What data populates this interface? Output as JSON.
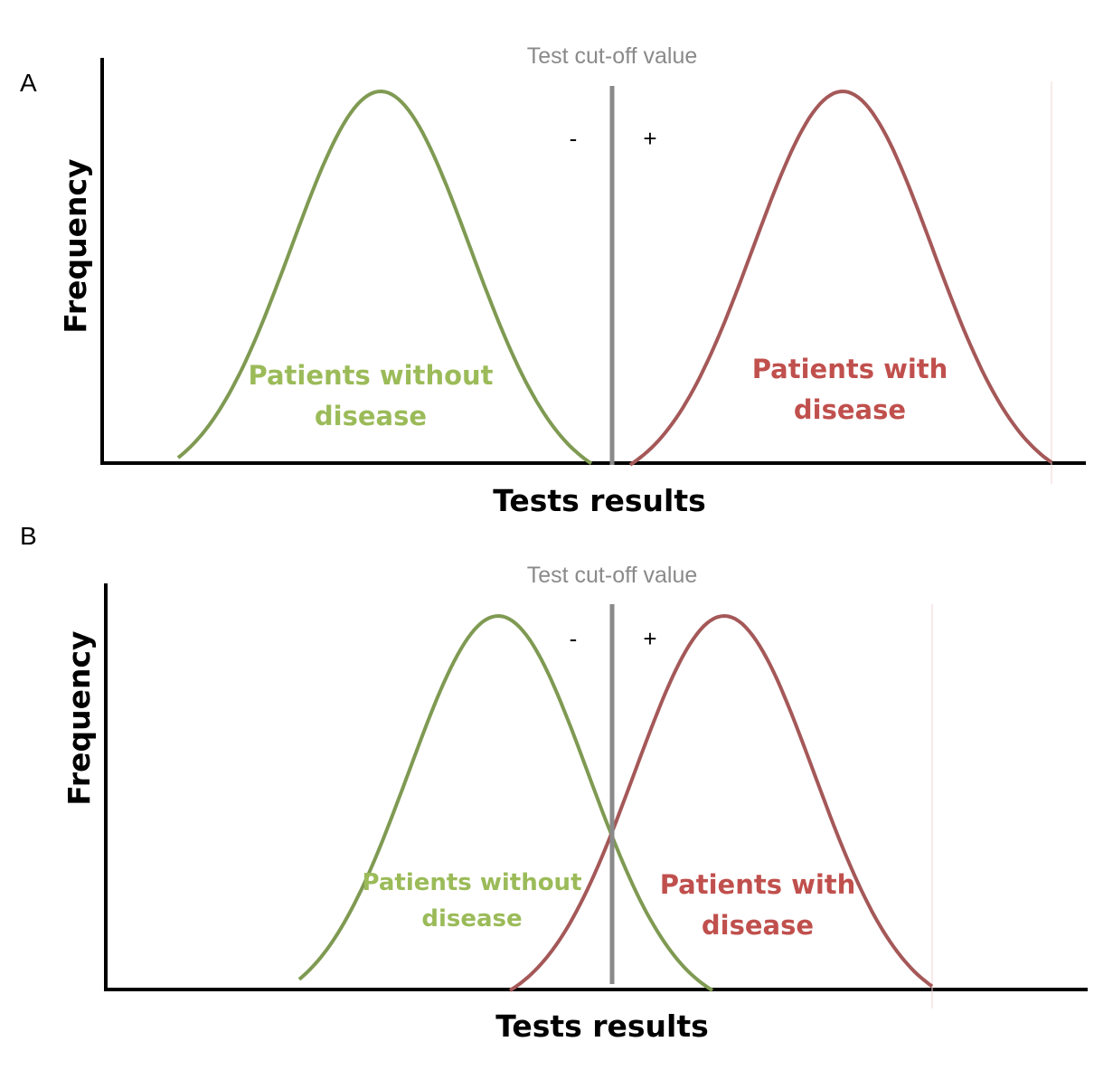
{
  "colors": {
    "healthy_curve": "#7f9a52",
    "healthy_text": "#9bbb59",
    "disease_curve": "#a55858",
    "disease_text": "#c0504d",
    "cutoff_line": "#8a8a8a",
    "cutoff_text": "#8a8a8a",
    "axis": "#000000"
  },
  "panels": [
    {
      "letter": "A",
      "cutoff_label": "Test cut-off value",
      "negative_sign": "-",
      "positive_sign": "+",
      "ylabel": "Frequency",
      "xlabel": "Tests results",
      "healthy_label_line1": "Patients without",
      "healthy_label_line2": "disease",
      "disease_label_line1": "Patients with",
      "disease_label_line2": "disease"
    },
    {
      "letter": "B",
      "cutoff_label": "Test cut-off value",
      "negative_sign": "-",
      "positive_sign": "+",
      "ylabel": "Frequency",
      "xlabel": "Tests results",
      "healthy_label_line1": "Patients without",
      "healthy_label_line2": "disease",
      "disease_label_line1": "Patients with",
      "disease_label_line2": "disease"
    }
  ]
}
